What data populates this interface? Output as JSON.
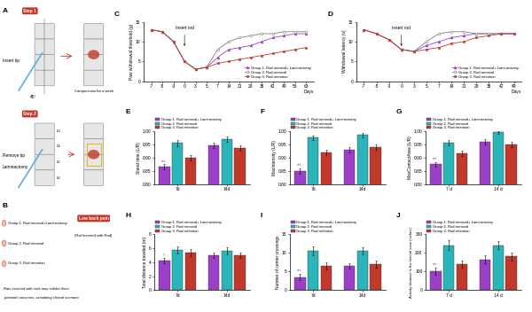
{
  "diagram": {
    "A": {
      "label": "A",
      "step1": "Step 1",
      "insert": "Insert tip",
      "angle": "45°",
      "compression": "Compression for a week",
      "step2": "Step 2",
      "remove": "Remove tip",
      "laminectomy": "Laminectomy",
      "vertebrae": [
        "L3",
        "L4",
        "L5",
        "L6"
      ]
    },
    "B": {
      "label": "B",
      "groups": [
        "Group 1. Rod removal+Laminectomy",
        "Group 2. Rod removal",
        "Group 3. Rod retention"
      ],
      "pain": "Low back pain",
      "rat": "(Rat Inserted with Rod)",
      "caption": [
        "Rats inserted with rods may exhibit three",
        "potential outcomes, simulating clinical scenario"
      ]
    }
  },
  "chart_data": [
    {
      "type": "line",
      "panel": "C",
      "y_label": "Paw withdrawal threshold (g)",
      "x_label": "Days",
      "categories": [
        "-7",
        "-5",
        "-3",
        "0",
        "3",
        "5",
        "7",
        "14",
        "21",
        "28",
        "35",
        "42",
        "49",
        "56",
        "63"
      ],
      "ylim": [
        0,
        15
      ],
      "yticks": [
        0,
        5,
        10,
        15
      ],
      "legend": "lower right",
      "annotations": [
        {
          "text": "Insert rod",
          "category": "0"
        }
      ],
      "series": [
        {
          "name": "Group 1. Rod removal+ Laminectomy",
          "color": "#9b3fc8",
          "marker": "triangle",
          "values": [
            13,
            12.5,
            10,
            5,
            3,
            3.5,
            6,
            8,
            8.5,
            9,
            10,
            11,
            11.5,
            12,
            12
          ]
        },
        {
          "name": "Group 2. Rod removal",
          "color": "#7f7f7f",
          "marker": "circle_open",
          "values": [
            13,
            12.5,
            10,
            5,
            3,
            3.5,
            8,
            10,
            11,
            11.5,
            12,
            12,
            12.5,
            12.5,
            12.5
          ]
        },
        {
          "name": "Group 3. Rod retention",
          "color": "#c0392b",
          "marker": "square",
          "values": [
            13,
            12.5,
            10,
            5,
            3,
            3.5,
            4.5,
            5,
            5.5,
            6,
            6.5,
            7,
            7.5,
            8,
            8.5
          ]
        }
      ]
    },
    {
      "type": "line",
      "panel": "D",
      "y_label": "Withdrawal latency (s)",
      "x_label": "Days",
      "categories": [
        "-7",
        "-5",
        "-3",
        "0",
        "3",
        "5",
        "7",
        "14",
        "21",
        "28",
        "35",
        "42",
        "49"
      ],
      "ylim": [
        0,
        15
      ],
      "yticks": [
        0,
        5,
        10,
        15
      ],
      "legend": "lower right",
      "annotations": [
        {
          "text": "Insert rod",
          "category": "0"
        }
      ],
      "series": [
        {
          "name": "Group 1. Rod removal+ Laminectomy",
          "color": "#9b3fc8",
          "marker": "triangle",
          "values": [
            13,
            12,
            10.5,
            8,
            7.5,
            9,
            10,
            11,
            11.5,
            12,
            12,
            12,
            12
          ]
        },
        {
          "name": "Group 2. Rod removal",
          "color": "#7f7f7f",
          "marker": "circle_open",
          "values": [
            13,
            12,
            10.5,
            8,
            7.5,
            10,
            12,
            12.5,
            12.5,
            12,
            12,
            12,
            12
          ]
        },
        {
          "name": "Group 3. Rod retention",
          "color": "#c0392b",
          "marker": "square",
          "values": [
            13,
            12,
            10.5,
            8,
            7.5,
            8,
            8.5,
            9.5,
            10,
            11,
            11.5,
            12,
            12
          ]
        }
      ]
    },
    {
      "type": "bar",
      "panel": "E",
      "y_label": "Stand time (L/R)",
      "categories": [
        "7d",
        "14d"
      ],
      "ylim": [
        0.8,
        1.0
      ],
      "yticks": [
        {
          "value": 0.8,
          "label": "0.80"
        },
        {
          "value": 0.85,
          "label": "0.85"
        },
        {
          "value": 0.9,
          "label": "0.90"
        },
        {
          "value": 0.95,
          "label": "0.95"
        },
        {
          "value": 1.0,
          "label": "1.00"
        }
      ],
      "legend": "above",
      "annotations": [
        {
          "text": "***",
          "category": "7d",
          "series": 0
        }
      ],
      "series": [
        {
          "name": "Group 1. Rod removal+ Laminectomy",
          "color": "#9b3fc8",
          "values": [
            0.865,
            0.945
          ],
          "errors": [
            0.01,
            0.01
          ]
        },
        {
          "name": "Group 2. Rod removal",
          "color": "#2bb5b8",
          "values": [
            0.955,
            0.97
          ],
          "errors": [
            0.012,
            0.01
          ]
        },
        {
          "name": "Group 3. Rod retention",
          "color": "#c0392b",
          "values": [
            0.9,
            0.935
          ],
          "errors": [
            0.01,
            0.01
          ]
        }
      ]
    },
    {
      "type": "bar",
      "panel": "F",
      "y_label": "MaxIntensity (L/R)",
      "categories": [
        "7d",
        "14d"
      ],
      "ylim": [
        0.8,
        1.0
      ],
      "yticks": [
        {
          "value": 0.8,
          "label": "0.80"
        },
        {
          "value": 0.85,
          "label": "0.85"
        },
        {
          "value": 0.9,
          "label": "0.90"
        },
        {
          "value": 0.95,
          "label": "0.95"
        },
        {
          "value": 1.0,
          "label": "1.00"
        }
      ],
      "legend": "above",
      "annotations": [
        {
          "text": "***",
          "category": "7d",
          "series": 0
        }
      ],
      "series": [
        {
          "name": "Group 1. Rod removal+ Laminectomy",
          "color": "#9b3fc8",
          "values": [
            0.85,
            0.93
          ],
          "errors": [
            0.01,
            0.01
          ]
        },
        {
          "name": "Group 2. Rod removal",
          "color": "#2bb5b8",
          "values": [
            0.975,
            0.985
          ],
          "errors": [
            0.008,
            0.008
          ]
        },
        {
          "name": "Group 3. Rod retention",
          "color": "#c0392b",
          "values": [
            0.92,
            0.94
          ],
          "errors": [
            0.01,
            0.01
          ]
        }
      ]
    },
    {
      "type": "bar",
      "panel": "G",
      "y_label": "MaxContactArea (L/R)",
      "categories": [
        "7 d",
        "14 d"
      ],
      "ylim": [
        0.8,
        1.0
      ],
      "yticks": [
        {
          "value": 0.8,
          "label": "0.80"
        },
        {
          "value": 0.85,
          "label": "0.85"
        },
        {
          "value": 0.9,
          "label": "0.90"
        },
        {
          "value": 0.95,
          "label": "0.95"
        },
        {
          "value": 1.0,
          "label": "1.00"
        }
      ],
      "legend": "above",
      "annotations": [
        {
          "text": "***",
          "category": "7 d",
          "series": 0
        }
      ],
      "series": [
        {
          "name": "Group 1. Rod removal+ Laminectomy",
          "color": "#9b3fc8",
          "values": [
            0.875,
            0.96
          ],
          "errors": [
            0.008,
            0.01
          ]
        },
        {
          "name": "Group 2. Rod removal",
          "color": "#2bb5b8",
          "values": [
            0.955,
            0.995
          ],
          "errors": [
            0.01,
            0.005
          ]
        },
        {
          "name": "Group 3. Rod retention",
          "color": "#c0392b",
          "values": [
            0.915,
            0.95
          ],
          "errors": [
            0.01,
            0.01
          ]
        }
      ]
    },
    {
      "type": "bar",
      "panel": "H",
      "y_label": "Total distance traveled (m)",
      "categories": [
        "7d",
        "14d"
      ],
      "ylim": [
        0,
        8
      ],
      "yticks": [
        0,
        2,
        4,
        6,
        8
      ],
      "legend": "above",
      "annotations": [
        {
          "text": "*",
          "category": "7d",
          "series": 0
        }
      ],
      "series": [
        {
          "name": "Group 1. Rod removal+ Laminectomy",
          "color": "#9b3fc8",
          "values": [
            4.2,
            5.0
          ],
          "errors": [
            0.4,
            0.4
          ]
        },
        {
          "name": "Group 2. Rod removal",
          "color": "#2bb5b8",
          "values": [
            5.7,
            5.6
          ],
          "errors": [
            0.5,
            0.5
          ]
        },
        {
          "name": "Group 3. Rod retention",
          "color": "#c0392b",
          "values": [
            5.4,
            5.0
          ],
          "errors": [
            0.5,
            0.4
          ]
        }
      ]
    },
    {
      "type": "bar",
      "panel": "I",
      "y_label": "Number of center crossings",
      "categories": [
        "7d",
        "14d"
      ],
      "ylim": [
        0,
        15
      ],
      "yticks": [
        0,
        5,
        10,
        15
      ],
      "legend": "above",
      "annotations": [
        {
          "text": "***",
          "category": "7d",
          "series": 0
        }
      ],
      "series": [
        {
          "name": "Group 1. Rod removal+ Laminectomy",
          "color": "#9b3fc8",
          "values": [
            3.5,
            6.5
          ],
          "errors": [
            0.8,
            0.8
          ]
        },
        {
          "name": "Group 2. Rod removal",
          "color": "#2bb5b8",
          "values": [
            10.5,
            10.5
          ],
          "errors": [
            1.2,
            1.0
          ]
        },
        {
          "name": "Group 3. Rod retention",
          "color": "#c0392b",
          "values": [
            6.5,
            7.0
          ],
          "errors": [
            1.0,
            0.9
          ]
        }
      ]
    },
    {
      "type": "bar",
      "panel": "J",
      "y_label": "Activity distance in the central zone (inches)",
      "categories": [
        "7 d",
        "14 d"
      ],
      "ylim": [
        0,
        300
      ],
      "yticks": [
        0,
        100,
        200,
        300
      ],
      "legend": "above",
      "annotations": [
        {
          "text": "***",
          "category": "7 d",
          "series": 0
        }
      ],
      "series": [
        {
          "name": "Group 1. Rod removal+ Laminectomy",
          "color": "#9b3fc8",
          "values": [
            100,
            165
          ],
          "errors": [
            20,
            20
          ]
        },
        {
          "name": "Group 2. Rod removal",
          "color": "#2bb5b8",
          "values": [
            240,
            240
          ],
          "errors": [
            25,
            20
          ]
        },
        {
          "name": "Group 3. Rod retention",
          "color": "#c0392b",
          "values": [
            140,
            180
          ],
          "errors": [
            20,
            20
          ]
        }
      ]
    }
  ]
}
